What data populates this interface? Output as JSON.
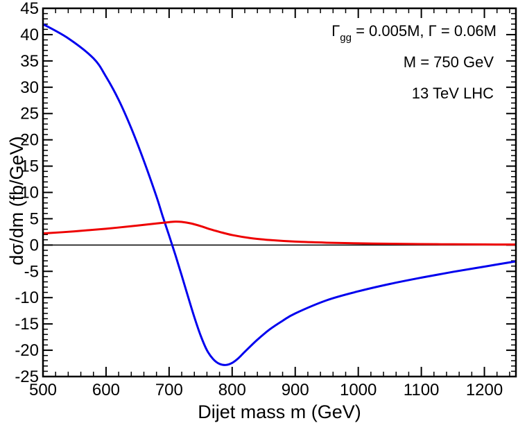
{
  "chart_data": {
    "type": "line",
    "xlabel": "Dijet mass m  (GeV)",
    "ylabel": "dσ/dm   (fb/GeV)",
    "xlim": [
      500,
      1250
    ],
    "ylim": [
      -25,
      45
    ],
    "xticks": [
      500,
      600,
      700,
      800,
      900,
      1000,
      1100,
      1200
    ],
    "yticks": [
      -25,
      -20,
      -15,
      -10,
      -5,
      0,
      5,
      10,
      15,
      20,
      25,
      30,
      35,
      40,
      45
    ],
    "x_minor_step": 20,
    "y_minor_step": 1,
    "zero_line": true,
    "annotations": {
      "width_greek": "Γ",
      "width_sub": "gg",
      "width_line": " = 0.005M,  Γ = 0.06M",
      "mass_line": "M = 750 GeV",
      "collider_line": "13 TeV LHC"
    },
    "series": [
      {
        "name": "blue",
        "color": "#0000ee",
        "x": [
          500,
          540,
          580,
          600,
          620,
          640,
          660,
          680,
          690,
          700,
          710,
          720,
          730,
          740,
          750,
          760,
          770,
          780,
          790,
          800,
          810,
          820,
          840,
          860,
          880,
          900,
          950,
          1000,
          1050,
          1100,
          1150,
          1200,
          1250
        ],
        "y": [
          42,
          39.3,
          35.5,
          32,
          27.6,
          22.2,
          16,
          9.2,
          5.4,
          1.8,
          -1.9,
          -5.8,
          -9.8,
          -13.7,
          -17.2,
          -20,
          -21.7,
          -22.6,
          -22.8,
          -22.4,
          -21.5,
          -20.3,
          -18,
          -16,
          -14.4,
          -13,
          -10.5,
          -8.8,
          -7.4,
          -6.2,
          -5.1,
          -4.1,
          -3.1
        ]
      },
      {
        "name": "red",
        "color": "#ee0000",
        "x": [
          500,
          550,
          600,
          650,
          680,
          700,
          710,
          720,
          735,
          750,
          765,
          780,
          800,
          830,
          860,
          900,
          950,
          1000,
          1050,
          1100,
          1150,
          1200,
          1250
        ],
        "y": [
          2.2,
          2.6,
          3.1,
          3.7,
          4.1,
          4.35,
          4.45,
          4.4,
          4.1,
          3.6,
          3.0,
          2.5,
          1.9,
          1.3,
          0.95,
          0.65,
          0.45,
          0.32,
          0.24,
          0.18,
          0.14,
          0.11,
          0.09
        ]
      }
    ]
  }
}
